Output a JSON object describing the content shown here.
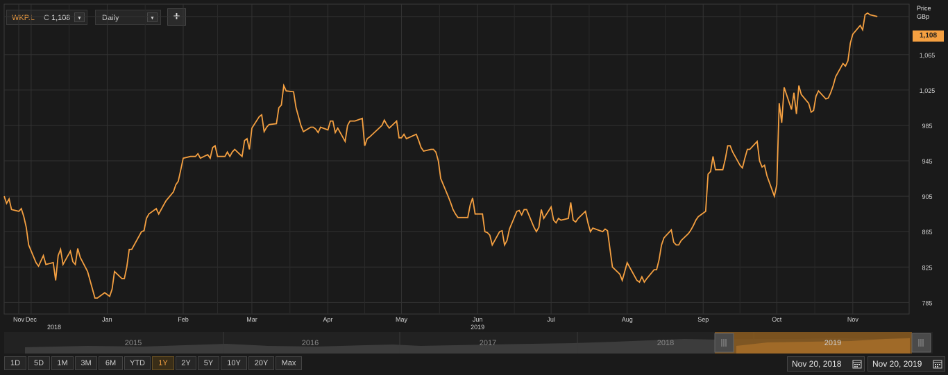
{
  "toolbar": {
    "symbol": "WKP.L",
    "close_prefix": "C",
    "close_value": "1,108",
    "interval": "Daily",
    "add_label": "+"
  },
  "axis_header": {
    "line1": "Price",
    "line2": "GBp"
  },
  "current_price_tag": "1,108",
  "colors": {
    "line": "#f5a041",
    "background": "#1a1a1a",
    "grid": "#333333",
    "accent": "#f5a041"
  },
  "navigator": {
    "years": [
      "2015",
      "2016",
      "2017",
      "2018",
      "2019"
    ]
  },
  "range_buttons": {
    "labels": [
      "1D",
      "5D",
      "1M",
      "3M",
      "6M",
      "YTD",
      "1Y",
      "2Y",
      "5Y",
      "10Y",
      "20Y",
      "Max"
    ],
    "active": "1Y"
  },
  "date_range": {
    "from": "Nov 20, 2018",
    "to": "Nov 20, 2019"
  },
  "chart_data": {
    "type": "line",
    "title": "",
    "xlabel": "",
    "ylabel": "Price GBp",
    "grid": true,
    "ylim": [
      772,
      1122
    ],
    "y_ticks": [
      785,
      825,
      865,
      905,
      945,
      985,
      1025,
      1065,
      1108
    ],
    "y_tick_labels": [
      "785",
      "825",
      "865",
      "905",
      "945",
      "985",
      "1,025",
      "1,065",
      "1,108"
    ],
    "x_ticks": [
      {
        "label": "Nov",
        "sub": "2018",
        "x": "2018-11-20"
      },
      {
        "label": "Dec",
        "sub": "",
        "x": "2018-12-01"
      },
      {
        "label": "Jan",
        "sub": "",
        "x": "2019-01-01"
      },
      {
        "label": "Feb",
        "sub": "",
        "x": "2019-02-01"
      },
      {
        "label": "Mar",
        "sub": "",
        "x": "2019-03-01"
      },
      {
        "label": "Apr",
        "sub": "",
        "x": "2019-04-01"
      },
      {
        "label": "May",
        "sub": "",
        "x": "2019-05-01"
      },
      {
        "label": "Jun",
        "sub": "2019",
        "x": "2019-06-01"
      },
      {
        "label": "Jul",
        "sub": "",
        "x": "2019-07-01"
      },
      {
        "label": "Aug",
        "sub": "",
        "x": "2019-08-01"
      },
      {
        "label": "Sep",
        "sub": "",
        "x": "2019-09-01"
      },
      {
        "label": "Oct",
        "sub": "",
        "x": "2019-10-01"
      },
      {
        "label": "Nov",
        "sub": "",
        "x": "2019-11-01"
      }
    ],
    "series": [
      {
        "name": "WKP.L",
        "points": [
          [
            "2018-11-20",
            905
          ],
          [
            "2018-11-21",
            897
          ],
          [
            "2018-11-22",
            902
          ],
          [
            "2018-11-23",
            890
          ],
          [
            "2018-11-26",
            888
          ],
          [
            "2018-11-27",
            891
          ],
          [
            "2018-11-28",
            882
          ],
          [
            "2018-11-29",
            870
          ],
          [
            "2018-11-30",
            850
          ],
          [
            "2018-12-03",
            830
          ],
          [
            "2018-12-04",
            826
          ],
          [
            "2018-12-05",
            832
          ],
          [
            "2018-12-06",
            838
          ],
          [
            "2018-12-07",
            828
          ],
          [
            "2018-12-10",
            830
          ],
          [
            "2018-12-11",
            810
          ],
          [
            "2018-12-12",
            838
          ],
          [
            "2018-12-13",
            845
          ],
          [
            "2018-12-14",
            828
          ],
          [
            "2018-12-17",
            843
          ],
          [
            "2018-12-18",
            831
          ],
          [
            "2018-12-19",
            828
          ],
          [
            "2018-12-20",
            846
          ],
          [
            "2018-12-21",
            836
          ],
          [
            "2018-12-24",
            820
          ],
          [
            "2018-12-27",
            790
          ],
          [
            "2018-12-28",
            790
          ],
          [
            "2018-12-31",
            796
          ],
          [
            "2019-01-02",
            792
          ],
          [
            "2019-01-03",
            800
          ],
          [
            "2019-01-04",
            820
          ],
          [
            "2019-01-07",
            812
          ],
          [
            "2019-01-08",
            812
          ],
          [
            "2019-01-09",
            825
          ],
          [
            "2019-01-10",
            845
          ],
          [
            "2019-01-11",
            845
          ],
          [
            "2019-01-14",
            860
          ],
          [
            "2019-01-15",
            865
          ],
          [
            "2019-01-16",
            866
          ],
          [
            "2019-01-17",
            880
          ],
          [
            "2019-01-18",
            885
          ],
          [
            "2019-01-21",
            891
          ],
          [
            "2019-01-22",
            885
          ],
          [
            "2019-01-23",
            890
          ],
          [
            "2019-01-24",
            895
          ],
          [
            "2019-01-25",
            900
          ],
          [
            "2019-01-28",
            910
          ],
          [
            "2019-01-29",
            918
          ],
          [
            "2019-01-30",
            922
          ],
          [
            "2019-01-31",
            935
          ],
          [
            "2019-02-01",
            948
          ],
          [
            "2019-02-04",
            950
          ],
          [
            "2019-02-05",
            950
          ],
          [
            "2019-02-06",
            950
          ],
          [
            "2019-02-07",
            953
          ],
          [
            "2019-02-08",
            948
          ],
          [
            "2019-02-11",
            952
          ],
          [
            "2019-02-12",
            948
          ],
          [
            "2019-02-13",
            960
          ],
          [
            "2019-02-14",
            962
          ],
          [
            "2019-02-15",
            950
          ],
          [
            "2019-02-18",
            950
          ],
          [
            "2019-02-19",
            955
          ],
          [
            "2019-02-20",
            950
          ],
          [
            "2019-02-21",
            955
          ],
          [
            "2019-02-22",
            958
          ],
          [
            "2019-02-25",
            950
          ],
          [
            "2019-02-26",
            968
          ],
          [
            "2019-02-27",
            970
          ],
          [
            "2019-02-28",
            958
          ],
          [
            "2019-03-01",
            982
          ],
          [
            "2019-03-04",
            995
          ],
          [
            "2019-03-05",
            997
          ],
          [
            "2019-03-06",
            978
          ],
          [
            "2019-03-07",
            983
          ],
          [
            "2019-03-08",
            986
          ],
          [
            "2019-03-11",
            987
          ],
          [
            "2019-03-12",
            1005
          ],
          [
            "2019-03-13",
            1008
          ],
          [
            "2019-03-14",
            1030
          ],
          [
            "2019-03-15",
            1024
          ],
          [
            "2019-03-18",
            1023
          ],
          [
            "2019-03-19",
            1005
          ],
          [
            "2019-03-20",
            995
          ],
          [
            "2019-03-21",
            985
          ],
          [
            "2019-03-22",
            978
          ],
          [
            "2019-03-25",
            983
          ],
          [
            "2019-03-26",
            983
          ],
          [
            "2019-03-27",
            981
          ],
          [
            "2019-03-28",
            977
          ],
          [
            "2019-03-29",
            983
          ],
          [
            "2019-04-01",
            980
          ],
          [
            "2019-04-02",
            990
          ],
          [
            "2019-04-03",
            990
          ],
          [
            "2019-04-04",
            977
          ],
          [
            "2019-04-05",
            982
          ],
          [
            "2019-04-08",
            967
          ],
          [
            "2019-04-09",
            985
          ],
          [
            "2019-04-10",
            990
          ],
          [
            "2019-04-11",
            990
          ],
          [
            "2019-04-12",
            990
          ],
          [
            "2019-04-15",
            993
          ],
          [
            "2019-04-16",
            962
          ],
          [
            "2019-04-17",
            970
          ],
          [
            "2019-04-18",
            972
          ],
          [
            "2019-04-23",
            985
          ],
          [
            "2019-04-24",
            991
          ],
          [
            "2019-04-25",
            986
          ],
          [
            "2019-04-26",
            982
          ],
          [
            "2019-04-29",
            990
          ],
          [
            "2019-04-30",
            971
          ],
          [
            "2019-05-01",
            971
          ],
          [
            "2019-05-02",
            975
          ],
          [
            "2019-05-03",
            970
          ],
          [
            "2019-05-07",
            975
          ],
          [
            "2019-05-08",
            968
          ],
          [
            "2019-05-09",
            960
          ],
          [
            "2019-05-10",
            956
          ],
          [
            "2019-05-13",
            958
          ],
          [
            "2019-05-14",
            958
          ],
          [
            "2019-05-15",
            955
          ],
          [
            "2019-05-16",
            945
          ],
          [
            "2019-05-17",
            925
          ],
          [
            "2019-05-20",
            905
          ],
          [
            "2019-05-21",
            898
          ],
          [
            "2019-05-22",
            890
          ],
          [
            "2019-05-23",
            885
          ],
          [
            "2019-05-24",
            881
          ],
          [
            "2019-05-28",
            881
          ],
          [
            "2019-05-29",
            895
          ],
          [
            "2019-05-30",
            903
          ],
          [
            "2019-05-31",
            885
          ],
          [
            "2019-06-03",
            885
          ],
          [
            "2019-06-04",
            865
          ],
          [
            "2019-06-05",
            864
          ],
          [
            "2019-06-06",
            861
          ],
          [
            "2019-06-07",
            850
          ],
          [
            "2019-06-10",
            865
          ],
          [
            "2019-06-11",
            866
          ],
          [
            "2019-06-12",
            850
          ],
          [
            "2019-06-13",
            855
          ],
          [
            "2019-06-14",
            868
          ],
          [
            "2019-06-17",
            888
          ],
          [
            "2019-06-18",
            889
          ],
          [
            "2019-06-19",
            884
          ],
          [
            "2019-06-20",
            890
          ],
          [
            "2019-06-21",
            890
          ],
          [
            "2019-06-24",
            870
          ],
          [
            "2019-06-25",
            865
          ],
          [
            "2019-06-26",
            870
          ],
          [
            "2019-06-27",
            890
          ],
          [
            "2019-06-28",
            880
          ],
          [
            "2019-07-01",
            893
          ],
          [
            "2019-07-02",
            878
          ],
          [
            "2019-07-03",
            875
          ],
          [
            "2019-07-04",
            880
          ],
          [
            "2019-07-05",
            878
          ],
          [
            "2019-07-08",
            880
          ],
          [
            "2019-07-09",
            898
          ],
          [
            "2019-07-10",
            878
          ],
          [
            "2019-07-11",
            876
          ],
          [
            "2019-07-12",
            880
          ],
          [
            "2019-07-15",
            888
          ],
          [
            "2019-07-16",
            875
          ],
          [
            "2019-07-17",
            865
          ],
          [
            "2019-07-18",
            869
          ],
          [
            "2019-07-19",
            868
          ],
          [
            "2019-07-22",
            865
          ],
          [
            "2019-07-23",
            868
          ],
          [
            "2019-07-24",
            866
          ],
          [
            "2019-07-25",
            845
          ],
          [
            "2019-07-26",
            825
          ],
          [
            "2019-07-29",
            817
          ],
          [
            "2019-07-30",
            810
          ],
          [
            "2019-07-31",
            820
          ],
          [
            "2019-08-01",
            830
          ],
          [
            "2019-08-02",
            825
          ],
          [
            "2019-08-05",
            810
          ],
          [
            "2019-08-06",
            808
          ],
          [
            "2019-08-07",
            814
          ],
          [
            "2019-08-08",
            808
          ],
          [
            "2019-08-09",
            812
          ],
          [
            "2019-08-12",
            822
          ],
          [
            "2019-08-13",
            822
          ],
          [
            "2019-08-14",
            833
          ],
          [
            "2019-08-15",
            850
          ],
          [
            "2019-08-16",
            858
          ],
          [
            "2019-08-19",
            867
          ],
          [
            "2019-08-20",
            853
          ],
          [
            "2019-08-21",
            850
          ],
          [
            "2019-08-22",
            850
          ],
          [
            "2019-08-23",
            855
          ],
          [
            "2019-08-26",
            863
          ],
          [
            "2019-08-27",
            867
          ],
          [
            "2019-08-28",
            872
          ],
          [
            "2019-08-29",
            878
          ],
          [
            "2019-08-30",
            882
          ],
          [
            "2019-09-02",
            888
          ],
          [
            "2019-09-03",
            930
          ],
          [
            "2019-09-04",
            933
          ],
          [
            "2019-09-05",
            950
          ],
          [
            "2019-09-06",
            935
          ],
          [
            "2019-09-09",
            935
          ],
          [
            "2019-09-10",
            947
          ],
          [
            "2019-09-11",
            962
          ],
          [
            "2019-09-12",
            962
          ],
          [
            "2019-09-13",
            955
          ],
          [
            "2019-09-16",
            940
          ],
          [
            "2019-09-17",
            937
          ],
          [
            "2019-09-18",
            948
          ],
          [
            "2019-09-19",
            958
          ],
          [
            "2019-09-20",
            958
          ],
          [
            "2019-09-23",
            967
          ],
          [
            "2019-09-24",
            945
          ],
          [
            "2019-09-25",
            938
          ],
          [
            "2019-09-26",
            940
          ],
          [
            "2019-09-27",
            928
          ],
          [
            "2019-09-30",
            905
          ],
          [
            "2019-10-01",
            918
          ],
          [
            "2019-10-02",
            1010
          ],
          [
            "2019-10-03",
            988
          ],
          [
            "2019-10-04",
            1028
          ],
          [
            "2019-10-07",
            1003
          ],
          [
            "2019-10-08",
            1022
          ],
          [
            "2019-10-09",
            998
          ],
          [
            "2019-10-10",
            1030
          ],
          [
            "2019-10-11",
            1020
          ],
          [
            "2019-10-14",
            1010
          ],
          [
            "2019-10-15",
            1000
          ],
          [
            "2019-10-16",
            1002
          ],
          [
            "2019-10-17",
            1018
          ],
          [
            "2019-10-18",
            1024
          ],
          [
            "2019-10-21",
            1015
          ],
          [
            "2019-10-22",
            1016
          ],
          [
            "2019-10-23",
            1022
          ],
          [
            "2019-10-24",
            1030
          ],
          [
            "2019-10-25",
            1040
          ],
          [
            "2019-10-28",
            1055
          ],
          [
            "2019-10-29",
            1052
          ],
          [
            "2019-10-30",
            1058
          ],
          [
            "2019-10-31",
            1078
          ],
          [
            "2019-11-01",
            1088
          ],
          [
            "2019-11-04",
            1098
          ],
          [
            "2019-11-05",
            1093
          ],
          [
            "2019-11-06",
            1110
          ],
          [
            "2019-11-07",
            1112
          ],
          [
            "2019-11-08",
            1110
          ],
          [
            "2019-11-11",
            1108
          ]
        ]
      }
    ]
  }
}
